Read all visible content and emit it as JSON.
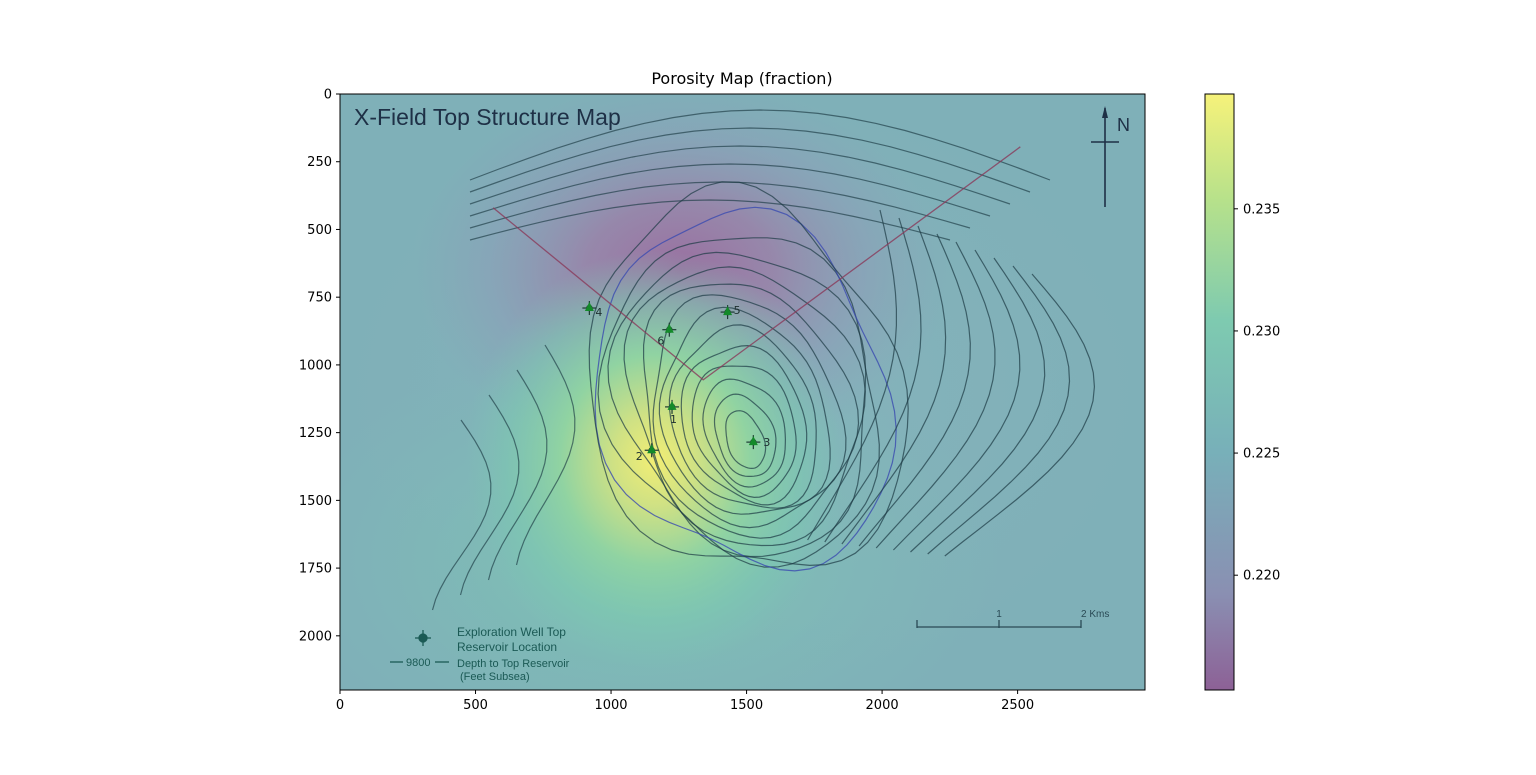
{
  "chart_data": {
    "type": "heatmap",
    "title": "Porosity Map (fraction)",
    "xlim": [
      0,
      2970
    ],
    "ylim": [
      2200,
      0
    ],
    "y_inverted": true,
    "xticks": [
      0,
      500,
      1000,
      1500,
      2000,
      2500
    ],
    "xtick_labels": [
      "0",
      "500",
      "1000",
      "1500",
      "2000",
      "2500"
    ],
    "yticks": [
      0,
      250,
      500,
      750,
      1000,
      1250,
      1500,
      1750,
      2000
    ],
    "ytick_labels": [
      "0",
      "250",
      "500",
      "750",
      "1000",
      "1250",
      "1500",
      "1750",
      "2000"
    ],
    "colorbar": {
      "range": [
        0.2153,
        0.2397
      ],
      "ticks": [
        0.22,
        0.225,
        0.23,
        0.235
      ],
      "tick_labels": [
        "0.220",
        "0.225",
        "0.230",
        "0.235"
      ],
      "colormap": "viridis-like (purple → teal → green → yellow), semi-transparent"
    },
    "field_features": [
      {
        "center": [
          1175,
          1350
        ],
        "value": 0.2397,
        "label": "high porosity (yellow) near well 2"
      },
      {
        "center": [
          1250,
          700
        ],
        "value": 0.2153,
        "label": "low porosity (purple) north of wells 5/6"
      }
    ],
    "wells": [
      {
        "id": "1",
        "x": 1225,
        "y": 1155
      },
      {
        "id": "2",
        "x": 1150,
        "y": 1315
      },
      {
        "id": "3",
        "x": 1525,
        "y": 1285
      },
      {
        "id": "4",
        "x": 920,
        "y": 790
      },
      {
        "id": "5",
        "x": 1430,
        "y": 805
      },
      {
        "id": "6",
        "x": 1215,
        "y": 870
      }
    ],
    "fault_trace": [
      [
        565,
        420
      ],
      [
        1340,
        1055
      ],
      [
        2510,
        195
      ]
    ]
  },
  "overlay": {
    "map_title": "X-Field Top Structure Map",
    "north_label": "N",
    "scale_labels": [
      "1",
      "2 Kms"
    ],
    "legend": {
      "well_line1": "Exploration Well Top",
      "well_line2": "Reservoir Location",
      "contour_value": "9800",
      "contour_line1": "Depth to Top Reservoir",
      "contour_line2": "(Feet Subsea)"
    }
  },
  "colors": {
    "background": "#7eb0ba",
    "contour": "#1c3a44",
    "highlight_contour": "#3b4bb0",
    "fault": "#8a3a5a",
    "well_marker": "#138a2a"
  }
}
